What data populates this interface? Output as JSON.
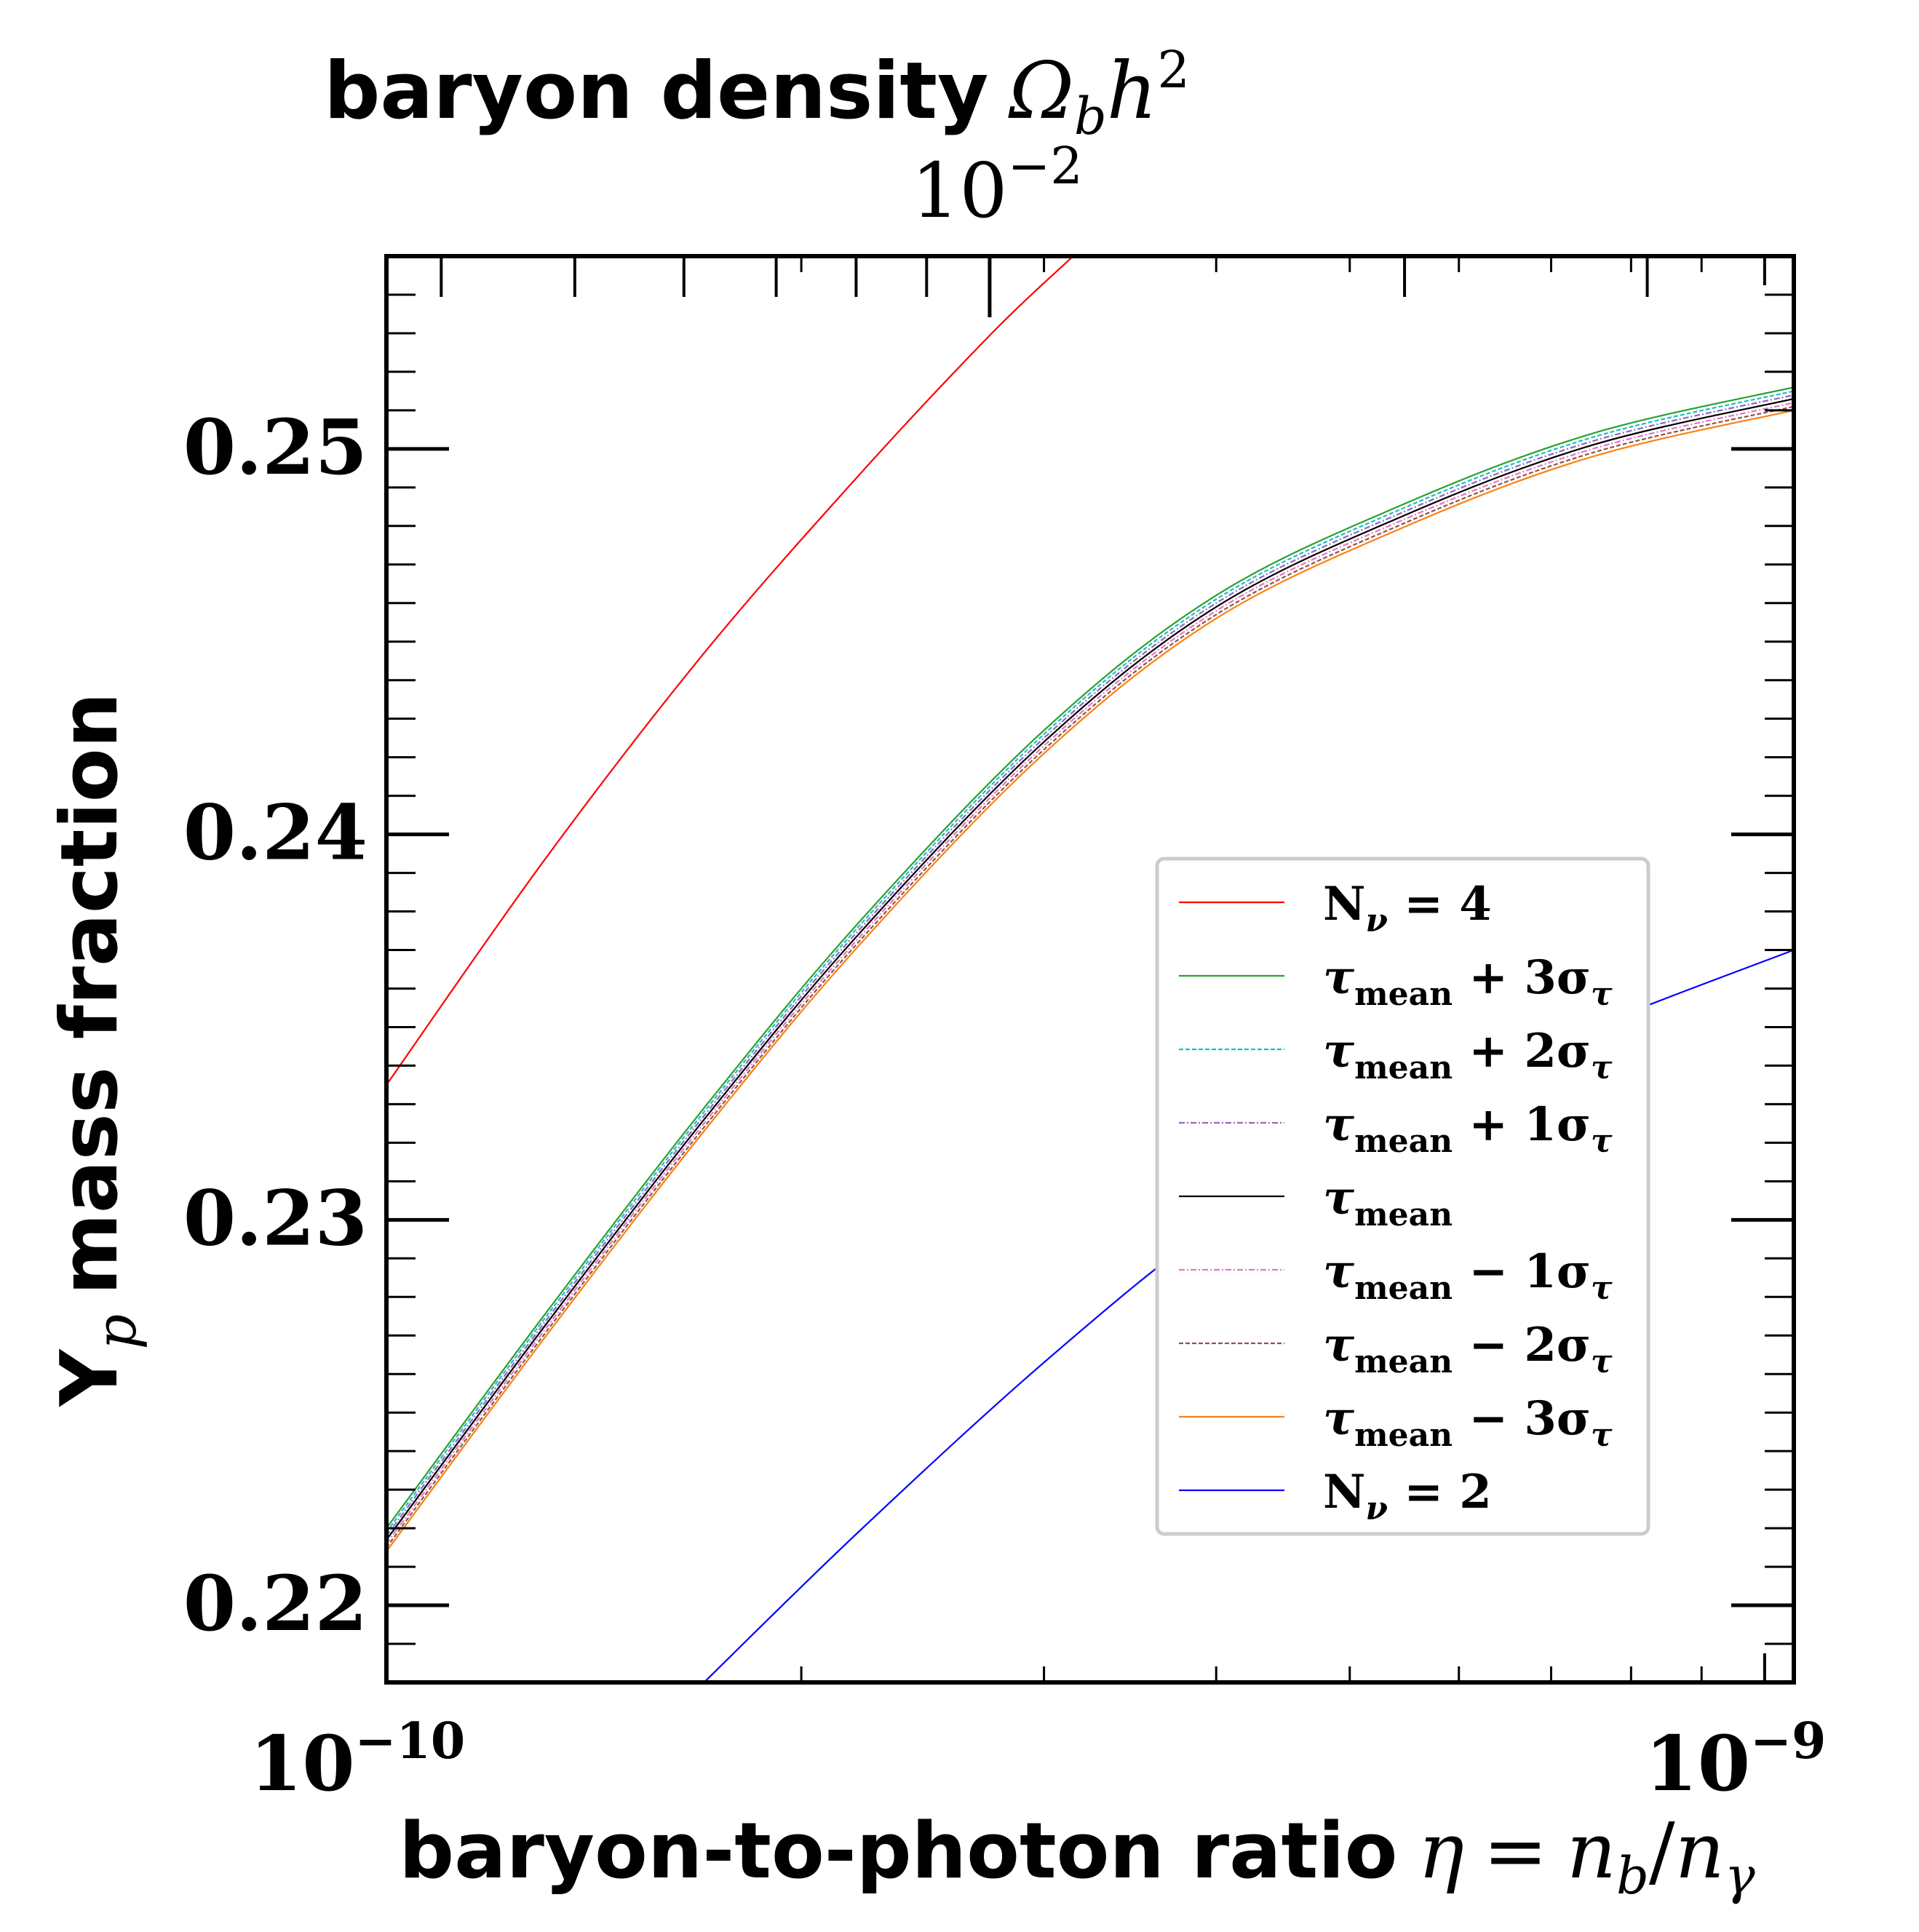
{
  "chart_data": {
    "type": "line",
    "title_top": {
      "text": "baryon density",
      "symbol_main": "Ω",
      "symbol_sub": "b",
      "symbol_h": "h",
      "symbol_exp": "2",
      "scale_base": "10",
      "scale_exp": "−2"
    },
    "xlabel": {
      "text": "baryon-to-photon ratio",
      "eq_eta": "η",
      "eq_equals": "=",
      "eq_n1": "n",
      "eq_sub1": "b",
      "eq_slash": "/",
      "eq_n2": "n",
      "eq_sub2": "γ"
    },
    "ylabel": {
      "main": "Y",
      "sub": "p",
      "rest": "mass fraction"
    },
    "x_scale": "log",
    "xlim": [
      1e-10,
      1.05e-09
    ],
    "ylim": [
      0.218,
      0.255
    ],
    "x_ticks": [
      {
        "value": 1e-10,
        "base": "10",
        "exp": "−10"
      },
      {
        "value": 1e-09,
        "base": "10",
        "exp": "−9"
      }
    ],
    "y_ticks": [
      {
        "value": 0.22,
        "label": "0.22"
      },
      {
        "value": 0.23,
        "label": "0.23"
      },
      {
        "value": 0.24,
        "label": "0.24"
      },
      {
        "value": 0.25,
        "label": "0.25"
      }
    ],
    "series": [
      {
        "name": "N_ν = 4",
        "color": "#ff0000",
        "dash": "",
        "x": [
          1e-10,
          1.3e-10,
          1.7e-10,
          2.2e-10,
          2.75e-10,
          3.15e-10
        ],
        "y": [
          0.2335,
          0.2393,
          0.2447,
          0.2493,
          0.253,
          0.255
        ]
      },
      {
        "name": "τ_mean + 3σ_τ",
        "color": "#2ca02c",
        "dash": "",
        "x": [
          1e-10,
          1.3e-10,
          1.7e-10,
          2.2e-10,
          3e-10,
          4e-10,
          5.5e-10,
          7.5e-10,
          1.05e-09
        ],
        "y": [
          0.222,
          0.2275,
          0.2329,
          0.2377,
          0.2427,
          0.2462,
          0.2486,
          0.2504,
          0.2516
        ]
      },
      {
        "name": "τ_mean + 2σ_τ",
        "color": "#17becf",
        "dash": "6 3",
        "x": [
          1e-10,
          1.3e-10,
          1.7e-10,
          2.2e-10,
          3e-10,
          4e-10,
          5.5e-10,
          7.5e-10,
          1.05e-09
        ],
        "y": [
          0.2219,
          0.2274,
          0.2328,
          0.2376,
          0.2426,
          0.2461,
          0.2485,
          0.2503,
          0.2515
        ]
      },
      {
        "name": "τ_mean + 1σ_τ",
        "color": "#9467bd",
        "dash": "8 3 2 3",
        "x": [
          1e-10,
          1.3e-10,
          1.7e-10,
          2.2e-10,
          3e-10,
          4e-10,
          5.5e-10,
          7.5e-10,
          1.05e-09
        ],
        "y": [
          0.2218,
          0.2273,
          0.2327,
          0.2375,
          0.2425,
          0.246,
          0.2484,
          0.2502,
          0.2514
        ]
      },
      {
        "name": "τ_mean",
        "color": "#000000",
        "dash": "",
        "x": [
          1e-10,
          1.3e-10,
          1.7e-10,
          2.2e-10,
          3e-10,
          4e-10,
          5.5e-10,
          7.5e-10,
          1.05e-09
        ],
        "y": [
          0.2217,
          0.2272,
          0.2326,
          0.2374,
          0.2424,
          0.2459,
          0.2483,
          0.2501,
          0.2513
        ]
      },
      {
        "name": "τ_mean − 1σ_τ",
        "color": "#e377c2",
        "dash": "8 3 2 3",
        "x": [
          1e-10,
          1.3e-10,
          1.7e-10,
          2.2e-10,
          3e-10,
          4e-10,
          5.5e-10,
          7.5e-10,
          1.05e-09
        ],
        "y": [
          0.2216,
          0.2271,
          0.2325,
          0.2373,
          0.2423,
          0.2458,
          0.2482,
          0.25,
          0.2512
        ]
      },
      {
        "name": "τ_mean − 2σ_τ",
        "color": "#8c564b",
        "dash": "6 3",
        "x": [
          1e-10,
          1.3e-10,
          1.7e-10,
          2.2e-10,
          3e-10,
          4e-10,
          5.5e-10,
          7.5e-10,
          1.05e-09
        ],
        "y": [
          0.2215,
          0.227,
          0.2324,
          0.2372,
          0.2422,
          0.2457,
          0.2481,
          0.2499,
          0.2511
        ]
      },
      {
        "name": "τ_mean − 3σ_τ",
        "color": "#ff7f0e",
        "dash": "",
        "x": [
          1e-10,
          1.3e-10,
          1.7e-10,
          2.2e-10,
          3e-10,
          4e-10,
          5.5e-10,
          7.5e-10,
          1.05e-09
        ],
        "y": [
          0.2214,
          0.2269,
          0.2323,
          0.2371,
          0.2421,
          0.2456,
          0.248,
          0.2498,
          0.251
        ]
      },
      {
        "name": "N_ν = 2",
        "color": "#0000ff",
        "dash": "",
        "x": [
          1.7e-10,
          2.2e-10,
          3e-10,
          4e-10,
          5.5e-10,
          7.5e-10,
          1.05e-09
        ],
        "y": [
          0.218,
          0.2219,
          0.2263,
          0.2299,
          0.2329,
          0.235,
          0.237
        ]
      }
    ],
    "legend": {
      "placement": "center-right",
      "entries": [
        {
          "main": "N",
          "sub": "ν",
          "tail": " = 4"
        },
        {
          "main": "τ",
          "sub": "mean",
          "tail": " + 3σ",
          "tail_sub": "τ"
        },
        {
          "main": "τ",
          "sub": "mean",
          "tail": " + 2σ",
          "tail_sub": "τ"
        },
        {
          "main": "τ",
          "sub": "mean",
          "tail": " + 1σ",
          "tail_sub": "τ"
        },
        {
          "main": "τ",
          "sub": "mean",
          "tail": "",
          "tail_sub": ""
        },
        {
          "main": "τ",
          "sub": "mean",
          "tail": " − 1σ",
          "tail_sub": "τ"
        },
        {
          "main": "τ",
          "sub": "mean",
          "tail": " − 2σ",
          "tail_sub": "τ"
        },
        {
          "main": "τ",
          "sub": "mean",
          "tail": " − 3σ",
          "tail_sub": "τ"
        },
        {
          "main": "N",
          "sub": "ν",
          "tail": " = 2"
        }
      ]
    }
  }
}
